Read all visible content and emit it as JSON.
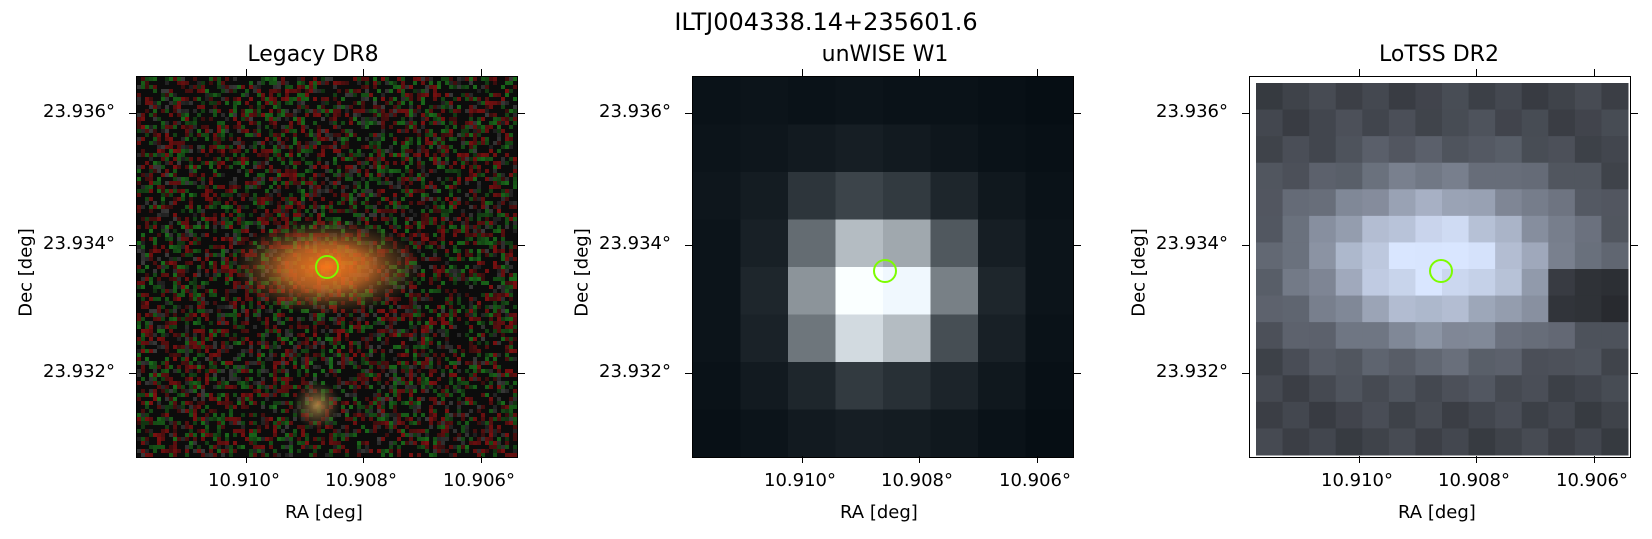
{
  "figure": {
    "title": "ILTJ004338.14+235601.6",
    "panels": [
      {
        "title": "Legacy DR8",
        "xlabel": "RA [deg]",
        "ylabel": "Dec [deg]",
        "xticks": [
          "10.910°",
          "10.908°",
          "10.906°"
        ],
        "yticks": [
          "23.936°",
          "23.934°",
          "23.932°"
        ],
        "marker_color": "#7cfc00"
      },
      {
        "title": "unWISE W1",
        "xlabel": "RA [deg]",
        "ylabel": "Dec [deg]",
        "xticks": [
          "10.910°",
          "10.908°",
          "10.906°"
        ],
        "yticks": [
          "23.936°",
          "23.934°",
          "23.932°"
        ],
        "marker_color": "#7cfc00"
      },
      {
        "title": "LoTSS DR2",
        "xlabel": "RA [deg]",
        "ylabel": "Dec [deg]",
        "xticks": [
          "10.910°",
          "10.908°",
          "10.906°"
        ],
        "yticks": [
          "23.936°",
          "23.934°",
          "23.932°"
        ],
        "marker_color": "#7cfc00"
      }
    ]
  }
}
